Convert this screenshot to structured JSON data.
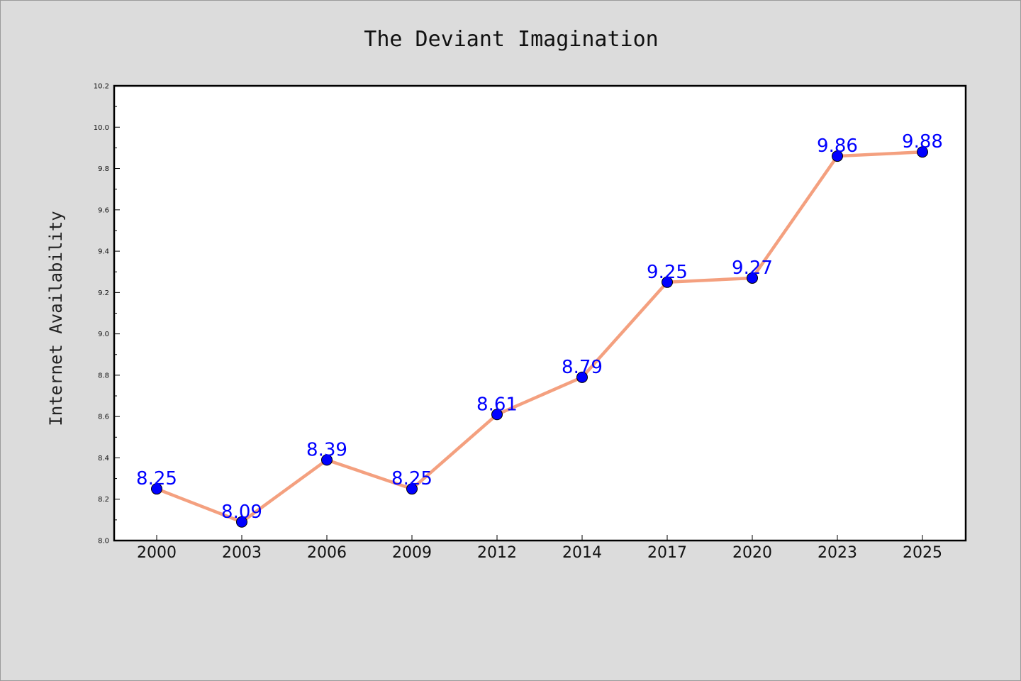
{
  "chart_data": {
    "type": "line",
    "title": "The Deviant Imagination",
    "xlabel": "",
    "ylabel": "Internet Availability",
    "categories": [
      "2000",
      "2003",
      "2006",
      "2009",
      "2012",
      "2014",
      "2017",
      "2020",
      "2023",
      "2025"
    ],
    "series": [
      {
        "values": [
          8.25,
          8.09,
          8.39,
          8.25,
          8.61,
          8.79,
          9.25,
          9.27,
          9.86,
          9.88
        ]
      }
    ],
    "data_labels": [
      "8.25",
      "8.09",
      "8.39",
      "8.25",
      "8.61",
      "8.79",
      "9.25",
      "9.27",
      "9.86",
      "9.88"
    ],
    "ylim": [
      8.0,
      10.2
    ],
    "yticks": [
      "8.0",
      "8.2",
      "8.4",
      "8.6",
      "8.8",
      "9.0",
      "9.2",
      "9.4",
      "9.6",
      "9.8",
      "10.0",
      "10.2"
    ],
    "grid": false,
    "legend": "none",
    "colors": {
      "line": "#f4a07f",
      "marker": "#0000ff",
      "marker_edge": "#000000",
      "data_label": "#0000ff",
      "plot_bg": "#ffffff",
      "figure_bg": "#dcdcdc"
    }
  }
}
